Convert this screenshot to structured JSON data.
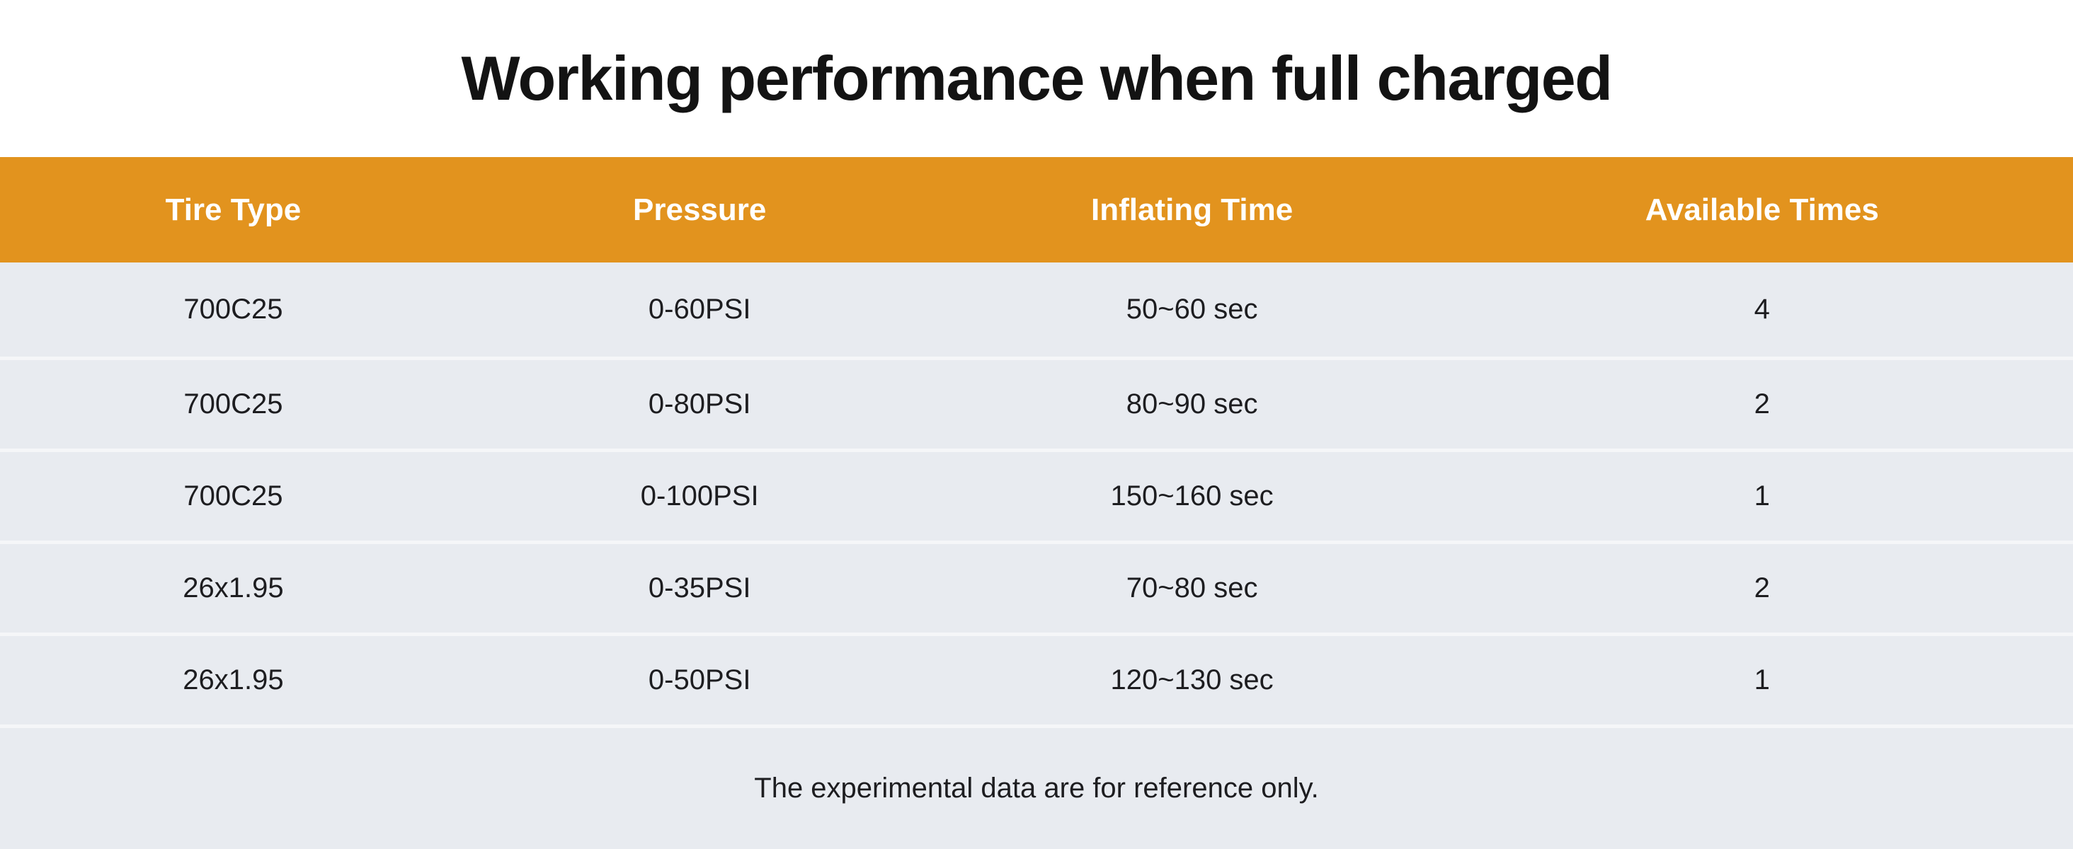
{
  "title": "Working performance when full charged",
  "chart_data": {
    "type": "table",
    "title": "Working performance when full charged",
    "columns": [
      "Tire Type",
      "Pressure",
      "Inflating Time",
      "Available Times"
    ],
    "rows": [
      [
        "700C25",
        "0-60PSI",
        "50~60 sec",
        "4"
      ],
      [
        "700C25",
        "0-80PSI",
        "80~90 sec",
        "2"
      ],
      [
        "700C25",
        "0-100PSI",
        "150~160 sec",
        "1"
      ],
      [
        "26x1.95",
        "0-35PSI",
        "70~80 sec",
        "2"
      ],
      [
        "26x1.95",
        "0-50PSI",
        "120~130 sec",
        "1"
      ]
    ],
    "footnote": "The experimental data are for reference only."
  },
  "colors": {
    "header_bg": "#E2931E",
    "header_text": "#FFFFFF",
    "row_bg": "#E8EBF0",
    "separator": "#F5F6F8",
    "body_text": "#1D1D20",
    "title_text": "#131313",
    "page_bg": "#FFFFFF"
  }
}
